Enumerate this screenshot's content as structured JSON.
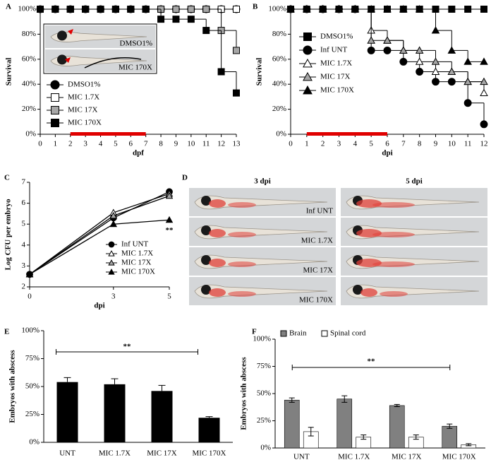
{
  "chart_data": [
    {
      "panel": "A",
      "type": "step",
      "xlabel": "dpf",
      "ylabel": "Survival",
      "xlim": [
        0,
        13
      ],
      "xticks": [
        0,
        1,
        2,
        3,
        4,
        5,
        6,
        7,
        8,
        9,
        10,
        11,
        12,
        13
      ],
      "ylim": [
        0,
        100
      ],
      "yticks": [
        {
          "value": 0,
          "label": "0%"
        },
        {
          "value": 20,
          "label": "20%"
        },
        {
          "value": 40,
          "label": "40%"
        },
        {
          "value": 60,
          "label": "60%"
        },
        {
          "value": 80,
          "label": "80%"
        },
        {
          "value": 100,
          "label": "100%"
        }
      ],
      "x": [
        0,
        1,
        2,
        3,
        4,
        5,
        6,
        7,
        8,
        9,
        10,
        11,
        12,
        13
      ],
      "series": [
        {
          "name": "DMSO1%",
          "marker": "circle",
          "color": "#000000",
          "values": [
            100,
            100,
            100,
            100,
            100,
            100,
            100,
            100,
            100,
            100,
            100,
            100,
            100,
            100
          ]
        },
        {
          "name": "MIC 1.7X",
          "marker": "square",
          "color": "#ffffff",
          "values": [
            100,
            100,
            100,
            100,
            100,
            100,
            100,
            100,
            100,
            100,
            100,
            100,
            100,
            100
          ]
        },
        {
          "name": "MIC 17X",
          "marker": "square",
          "color": "#a6a6a6",
          "values": [
            100,
            100,
            100,
            100,
            100,
            100,
            100,
            100,
            100,
            100,
            100,
            100,
            83,
            67
          ]
        },
        {
          "name": "MIC 170X",
          "marker": "square",
          "color": "#000000",
          "values": [
            100,
            100,
            100,
            100,
            100,
            100,
            100,
            100,
            92,
            92,
            92,
            83,
            50,
            33
          ]
        }
      ],
      "treatment": [
        2,
        7
      ],
      "treatment_color": "#e00000",
      "inset_labels": [
        "DMSO1%",
        "MIC 170X"
      ]
    },
    {
      "panel": "B",
      "type": "step",
      "xlabel": "dpi",
      "ylabel": "Survival",
      "xlim": [
        0,
        12
      ],
      "xticks": [
        0,
        1,
        2,
        3,
        4,
        5,
        6,
        7,
        8,
        9,
        10,
        11,
        12
      ],
      "ylim": [
        0,
        100
      ],
      "yticks": [
        {
          "value": 0,
          "label": "0%"
        },
        {
          "value": 20,
          "label": "20%"
        },
        {
          "value": 40,
          "label": "40%"
        },
        {
          "value": 60,
          "label": "60%"
        },
        {
          "value": 80,
          "label": "80%"
        },
        {
          "value": 100,
          "label": "100%"
        }
      ],
      "x": [
        0,
        1,
        2,
        3,
        4,
        5,
        6,
        7,
        8,
        9,
        10,
        11,
        12
      ],
      "series": [
        {
          "name": "DMSO1%",
          "marker": "square",
          "color": "#000000",
          "values": [
            100,
            100,
            100,
            100,
            100,
            100,
            100,
            100,
            100,
            100,
            100,
            100,
            100
          ]
        },
        {
          "name": "Inf UNT",
          "marker": "circle",
          "color": "#000000",
          "values": [
            100,
            100,
            100,
            100,
            100,
            67,
            67,
            58,
            50,
            42,
            42,
            25,
            8
          ]
        },
        {
          "name": "MIC 1.7X",
          "marker": "triangle",
          "color": "#ffffff",
          "values": [
            100,
            100,
            100,
            100,
            100,
            83,
            75,
            67,
            58,
            50,
            50,
            42,
            33
          ]
        },
        {
          "name": "MIC 17X",
          "marker": "triangle",
          "color": "#a6a6a6",
          "values": [
            100,
            100,
            100,
            100,
            100,
            75,
            75,
            67,
            67,
            58,
            50,
            42,
            42
          ]
        },
        {
          "name": "MIC 170X",
          "marker": "triangle",
          "color": "#000000",
          "values": [
            100,
            100,
            100,
            100,
            100,
            100,
            100,
            100,
            100,
            83,
            67,
            58,
            58
          ]
        }
      ],
      "treatment": [
        1,
        6
      ],
      "treatment_color": "#e00000"
    },
    {
      "panel": "C",
      "type": "line",
      "xlabel": "dpi",
      "ylabel": "Log CFU per embryo",
      "xlim": [
        0,
        5
      ],
      "xticks": [
        0,
        3,
        5
      ],
      "ylim": [
        2,
        7
      ],
      "yticks": [
        2,
        3,
        4,
        5,
        6,
        7
      ],
      "x": [
        0,
        3,
        5
      ],
      "series": [
        {
          "name": "Inf UNT",
          "marker": "circle",
          "color": "#000000",
          "values": [
            2.6,
            5.3,
            6.55
          ]
        },
        {
          "name": "MIC 1.7X",
          "marker": "triangle",
          "color": "#ffffff",
          "values": [
            2.6,
            5.55,
            6.45
          ]
        },
        {
          "name": "MIC 17X",
          "marker": "triangle",
          "color": "#a6a6a6",
          "values": [
            2.6,
            5.4,
            6.35
          ]
        },
        {
          "name": "MIC 170X",
          "marker": "triangle",
          "color": "#000000",
          "values": [
            2.6,
            5.0,
            5.2
          ]
        }
      ],
      "annotation": "**"
    },
    {
      "panel": "D",
      "type": "image",
      "column_titles": [
        "3 dpi",
        "5 dpi"
      ],
      "row_labels": [
        "Inf UNT",
        "MIC 1.7X",
        "MIC 17X",
        "MIC 170X"
      ]
    },
    {
      "panel": "E",
      "type": "bar",
      "ylabel": "Embryos with abscess",
      "categories": [
        "UNT",
        "MIC 1.7X",
        "MIC 17X",
        "MIC 170X"
      ],
      "values": [
        54,
        52,
        46,
        22
      ],
      "errors": [
        4,
        5,
        5,
        1
      ],
      "color": "#000000",
      "ylim": [
        0,
        100
      ],
      "yticks": [
        {
          "value": 0,
          "label": "0%"
        },
        {
          "value": 25,
          "label": "25%"
        },
        {
          "value": 50,
          "label": "50%"
        },
        {
          "value": 75,
          "label": "75%"
        },
        {
          "value": 100,
          "label": "100%"
        }
      ],
      "annotation": "**"
    },
    {
      "panel": "F",
      "type": "grouped-bar",
      "ylabel": "Embryos with abscess",
      "categories": [
        "UNT",
        "MIC 1.7X",
        "MIC 17X",
        "MIC 170X"
      ],
      "series": [
        {
          "name": "Brain",
          "color": "#808080",
          "values": [
            44,
            45,
            39,
            20
          ],
          "errors": [
            2,
            3,
            1,
            2
          ]
        },
        {
          "name": "Spinal cord",
          "color": "#ffffff",
          "values": [
            15,
            10,
            10,
            3
          ],
          "errors": [
            4,
            2,
            2,
            1
          ]
        }
      ],
      "ylim": [
        0,
        100
      ],
      "yticks": [
        {
          "value": 0,
          "label": "0%"
        },
        {
          "value": 25,
          "label": "25%"
        },
        {
          "value": 50,
          "label": "50%"
        },
        {
          "value": 75,
          "label": "75%"
        },
        {
          "value": 100,
          "label": "100%"
        }
      ],
      "annotation": "**"
    }
  ]
}
